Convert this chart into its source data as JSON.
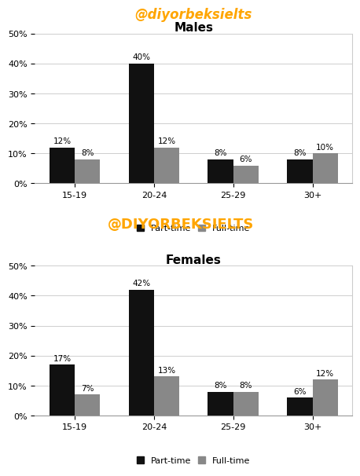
{
  "males": {
    "title": "Males",
    "categories": [
      "15-19",
      "20-24",
      "25-29",
      "30+"
    ],
    "part_time": [
      12,
      40,
      8,
      8
    ],
    "full_time": [
      8,
      12,
      6,
      10
    ]
  },
  "females": {
    "title": "Females",
    "categories": [
      "15-19",
      "20-24",
      "25-29",
      "30+"
    ],
    "part_time": [
      17,
      42,
      8,
      6
    ],
    "full_time": [
      7,
      13,
      8,
      12
    ]
  },
  "bar_color_parttime": "#111111",
  "bar_color_fulltime": "#888888",
  "ylim": [
    0,
    50
  ],
  "yticks": [
    0,
    10,
    20,
    30,
    40,
    50
  ],
  "ytick_labels": [
    "0%",
    "10%",
    "20%",
    "30%",
    "40%",
    "50%"
  ],
  "watermark_small": "@diyorbeksielts",
  "watermark_large": "@DIYORBEKSIELTS",
  "watermark_color": "#FFA500",
  "bar_width": 0.32,
  "label_fontsize": 7.5,
  "title_fontsize": 11,
  "legend_fontsize": 8,
  "tick_fontsize": 8,
  "watermark_small_fontsize": 12,
  "watermark_large_fontsize": 13
}
